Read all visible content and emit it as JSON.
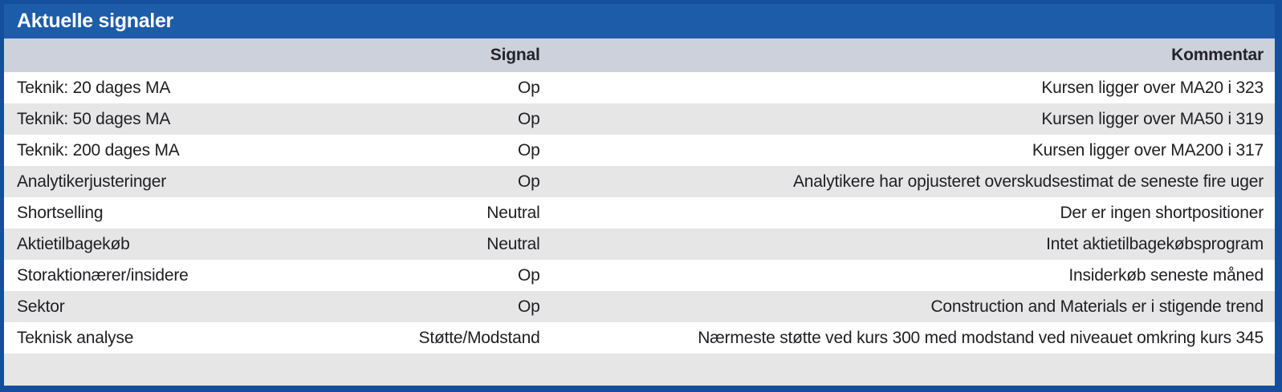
{
  "panel": {
    "title": "Aktuelle signaler",
    "colors": {
      "title_bar_bg": "#1D5CA9",
      "panel_border": "#134F9C",
      "column_header_bg": "#CDD1DB",
      "row_alt_bg": "#E6E6E7",
      "row_bg": "#FFFFFF",
      "title_text": "#FFFFFF",
      "header_text": "#23232B",
      "row_text": "#1F1F23"
    },
    "table": {
      "columns": {
        "label": "",
        "signal": "Signal",
        "kommentar": "Kommentar"
      },
      "rows": [
        {
          "label": "Teknik: 20 dages MA",
          "signal": "Op",
          "kommentar": "Kursen ligger over MA20 i 323"
        },
        {
          "label": "Teknik: 50 dages MA",
          "signal": "Op",
          "kommentar": "Kursen ligger over MA50 i 319"
        },
        {
          "label": "Teknik: 200 dages MA",
          "signal": "Op",
          "kommentar": "Kursen ligger over MA200 i 317"
        },
        {
          "label": "Analytikerjusteringer",
          "signal": "Op",
          "kommentar": "Analytikere har opjusteret overskudsestimat de seneste fire uger"
        },
        {
          "label": "Shortselling",
          "signal": "Neutral",
          "kommentar": "Der er ingen shortpositioner"
        },
        {
          "label": "Aktietilbagekøb",
          "signal": "Neutral",
          "kommentar": "Intet aktietilbagekøbsprogram"
        },
        {
          "label": "Storaktionærer/insidere",
          "signal": "Op",
          "kommentar": "Insiderkøb seneste måned"
        },
        {
          "label": "Sektor",
          "signal": "Op",
          "kommentar": "Construction and Materials er i stigende trend"
        },
        {
          "label": "Teknisk analyse",
          "signal": "Støtte/Modstand",
          "kommentar": "Nærmeste støtte ved kurs 300 med modstand ved niveauet omkring kurs 345"
        }
      ]
    }
  }
}
